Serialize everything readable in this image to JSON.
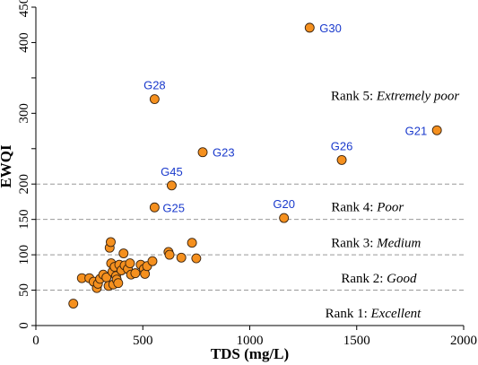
{
  "chart_data": {
    "type": "scatter",
    "xlabel": "TDS (mg/L)",
    "ylabel": "EWQI",
    "xlim": [
      0,
      2000
    ],
    "ylim": [
      0,
      450
    ],
    "xticks": [
      0,
      500,
      1000,
      1500,
      2000
    ],
    "yticks": [
      0,
      50,
      100,
      150,
      200,
      300,
      400,
      450
    ],
    "yticks_minor": [
      250,
      350
    ],
    "grid": false,
    "colors": {
      "point_fill": "#f5901e",
      "point_stroke": "#3a2410",
      "label": "#1a3acc",
      "threshold": "#999999"
    },
    "thresholds": [
      50,
      100,
      150,
      200
    ],
    "ranks": [
      {
        "prefix": "Rank 1: ",
        "name": "Excellent",
        "x": 1800,
        "y": 18
      },
      {
        "prefix": "Rank 2: ",
        "name": "Good",
        "x": 1780,
        "y": 67
      },
      {
        "prefix": "Rank 3: ",
        "name": "Medium",
        "x": 1800,
        "y": 117
      },
      {
        "prefix": "Rank 4: ",
        "name": "Poor",
        "x": 1720,
        "y": 168
      },
      {
        "prefix": "Rank 5: ",
        "name": "Extremely poor",
        "x": 1980,
        "y": 325
      }
    ],
    "points": [
      {
        "x": 1280,
        "y": 421,
        "label": "G30"
      },
      {
        "x": 1875,
        "y": 276,
        "label": "G21"
      },
      {
        "x": 1430,
        "y": 234,
        "label": "G26"
      },
      {
        "x": 780,
        "y": 245,
        "label": "G23"
      },
      {
        "x": 555,
        "y": 320,
        "label": "G28"
      },
      {
        "x": 635,
        "y": 198,
        "label": "G45"
      },
      {
        "x": 555,
        "y": 167,
        "label": "G25"
      },
      {
        "x": 1160,
        "y": 152,
        "label": "G20"
      },
      {
        "x": 175,
        "y": 31
      },
      {
        "x": 215,
        "y": 67
      },
      {
        "x": 250,
        "y": 67
      },
      {
        "x": 270,
        "y": 62
      },
      {
        "x": 285,
        "y": 53
      },
      {
        "x": 290,
        "y": 59
      },
      {
        "x": 300,
        "y": 66
      },
      {
        "x": 315,
        "y": 72
      },
      {
        "x": 330,
        "y": 68
      },
      {
        "x": 340,
        "y": 56
      },
      {
        "x": 345,
        "y": 110
      },
      {
        "x": 350,
        "y": 118
      },
      {
        "x": 352,
        "y": 88
      },
      {
        "x": 358,
        "y": 76
      },
      {
        "x": 362,
        "y": 58
      },
      {
        "x": 368,
        "y": 83
      },
      {
        "x": 375,
        "y": 70
      },
      {
        "x": 378,
        "y": 65
      },
      {
        "x": 385,
        "y": 60
      },
      {
        "x": 390,
        "y": 86
      },
      {
        "x": 400,
        "y": 78
      },
      {
        "x": 410,
        "y": 102
      },
      {
        "x": 415,
        "y": 85
      },
      {
        "x": 430,
        "y": 80
      },
      {
        "x": 440,
        "y": 88
      },
      {
        "x": 445,
        "y": 72
      },
      {
        "x": 465,
        "y": 74
      },
      {
        "x": 490,
        "y": 86
      },
      {
        "x": 505,
        "y": 80
      },
      {
        "x": 510,
        "y": 73
      },
      {
        "x": 520,
        "y": 84
      },
      {
        "x": 545,
        "y": 91
      },
      {
        "x": 620,
        "y": 104
      },
      {
        "x": 625,
        "y": 100
      },
      {
        "x": 680,
        "y": 96
      },
      {
        "x": 730,
        "y": 117
      },
      {
        "x": 750,
        "y": 95
      }
    ]
  }
}
